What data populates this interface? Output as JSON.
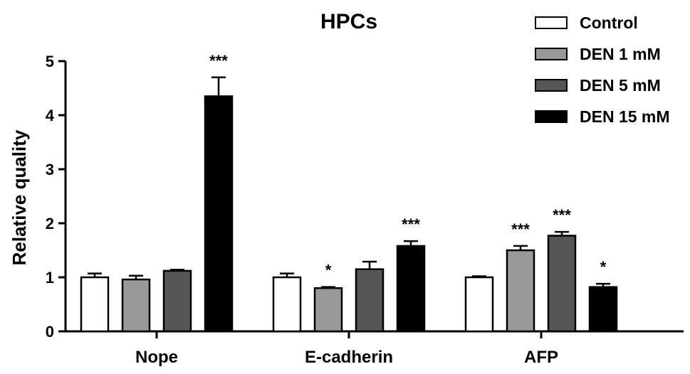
{
  "chart_data": {
    "type": "bar",
    "title": "HPCs",
    "xlabel": "",
    "ylabel": "Relative quality",
    "ylim": [
      0,
      5
    ],
    "yticks": [
      "0",
      "1",
      "2",
      "3",
      "4",
      "5"
    ],
    "categories": [
      "Nope",
      "E-cadherin",
      "AFP"
    ],
    "legend_position": "top-right",
    "series": [
      {
        "name": "Control",
        "color": "#ffffff",
        "values": [
          1.0,
          1.0,
          1.0
        ],
        "errors": [
          0.07,
          0.07,
          0.02
        ],
        "significance": [
          "",
          "",
          ""
        ]
      },
      {
        "name": "DEN 1 mM",
        "color": "#999999",
        "values": [
          0.96,
          0.8,
          1.5
        ],
        "errors": [
          0.07,
          0.02,
          0.08
        ],
        "significance": [
          "",
          "*",
          "***"
        ]
      },
      {
        "name": "DEN 5 mM",
        "color": "#555555",
        "values": [
          1.12,
          1.15,
          1.77
        ],
        "errors": [
          0.02,
          0.14,
          0.07
        ],
        "significance": [
          "",
          "",
          "***"
        ]
      },
      {
        "name": "DEN 15 mM",
        "color": "#000000",
        "values": [
          4.35,
          1.58,
          0.82
        ],
        "errors": [
          0.35,
          0.09,
          0.06
        ],
        "significance": [
          "***",
          "***",
          "*"
        ]
      }
    ]
  }
}
